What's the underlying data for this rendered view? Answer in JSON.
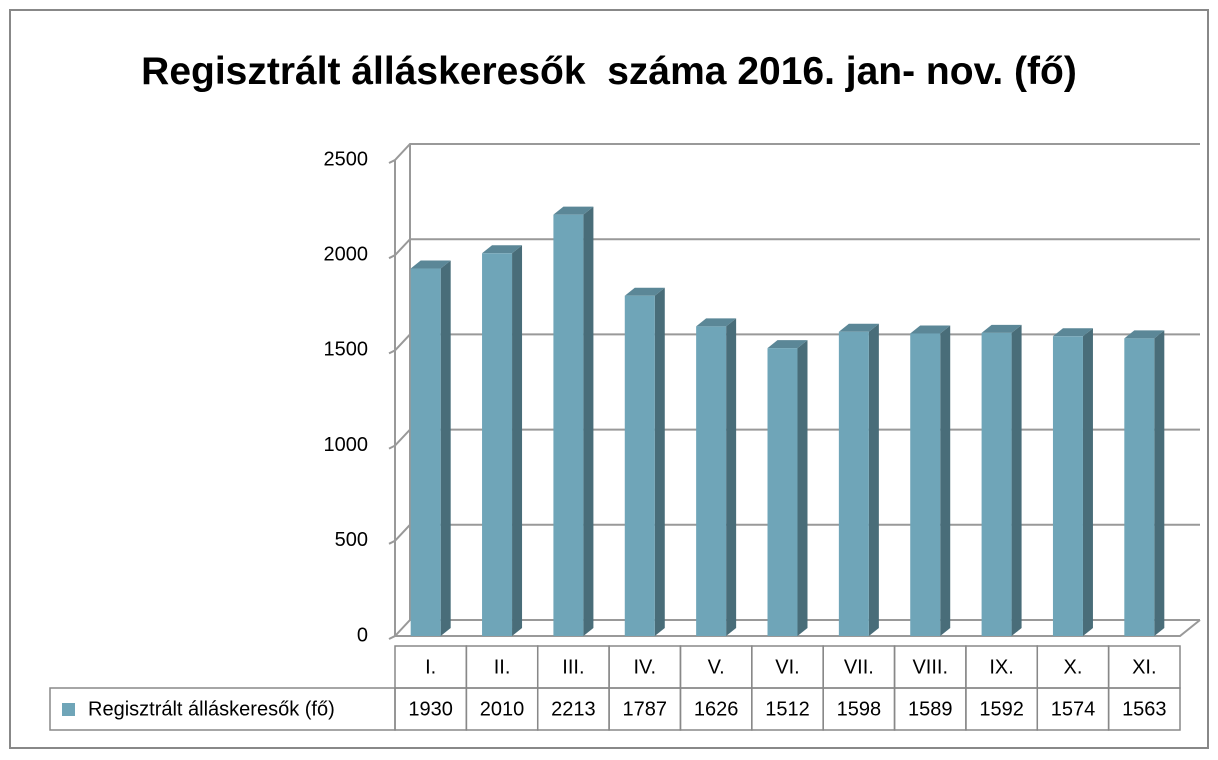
{
  "chart_data": {
    "type": "bar3d",
    "title": "Regisztrált álláskeresők  száma 2016. jan- nov. (fő)",
    "categories": [
      "I.",
      "II.",
      "III.",
      "IV.",
      "V.",
      "VI.",
      "VII.",
      "VIII.",
      "IX.",
      "X.",
      "XI."
    ],
    "series": [
      {
        "name": "Regisztrált álláskeresők (fő)",
        "color": "#6fa5b8",
        "values": [
          1930,
          2010,
          2213,
          1787,
          1626,
          1512,
          1598,
          1589,
          1592,
          1574,
          1563
        ]
      }
    ],
    "ylim": [
      0,
      2500
    ],
    "yticks": [
      0,
      500,
      1000,
      1500,
      2000,
      2500
    ],
    "grid": true,
    "data_table": true
  }
}
